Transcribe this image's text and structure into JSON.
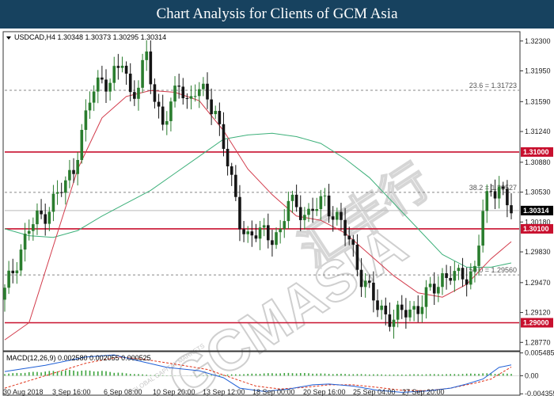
{
  "header": {
    "title": "Chart Analysis for Clients of GCM Asia"
  },
  "colors": {
    "bull": "#2a7d2e",
    "bear": "#151515",
    "ma_fast": "#d23a4a",
    "ma_slow": "#3db07a",
    "level_line": "#c8102e",
    "fib_line": "#888888",
    "macd_line": "#1f5fd6",
    "signal_line": "#e0341a",
    "hist": "#3ea43e"
  },
  "watermark": {
    "text": "GCMASIA",
    "sub": "GLOBAL CAPITAL MARKETS",
    "cn": "汇丰行"
  },
  "chart_data": [
    {
      "type": "candlestick",
      "title": "USDCAD,H4",
      "ohlc_label": "1.30348 1.30373 1.30295 1.30314",
      "ylim": [
        1.2868,
        1.324
      ],
      "y_ticks": [
        "1.32300",
        "1.31950",
        "1.31590",
        "1.31240",
        "1.30880",
        "1.30530",
        "1.30180",
        "1.29830",
        "1.29470",
        "1.29120",
        "1.28770"
      ],
      "x_labels": [
        "30 Aug 2018",
        "3 Sep 16:00",
        "6 Sep 08:00",
        "10 Sep 20:00",
        "13 Sep 12:00",
        "18 Sep 00:00",
        "20 Sep 16:00",
        "25 Sep 04:00",
        "27 Sep 20:00"
      ],
      "price_tags": [
        {
          "label": "1.31000",
          "value": 1.31,
          "style": "red"
        },
        {
          "label": "1.30314",
          "value": 1.30314,
          "style": "black"
        },
        {
          "label": "1.30100",
          "value": 1.301,
          "style": "red"
        },
        {
          "label": "1.29000",
          "value": 1.29,
          "style": "red"
        }
      ],
      "horizontal_levels": [
        1.31,
        1.301,
        1.29
      ],
      "current_price": 1.30314,
      "fib_levels": [
        {
          "label": "23.6 = 1.31723",
          "value": 1.31723
        },
        {
          "label": "38.2 = 1.30527",
          "value": 1.30527
        },
        {
          "label": "50.0 = 1.29560",
          "value": 1.2956
        }
      ],
      "close_path": [
        [
          0,
          1.2935
        ],
        [
          3,
          1.2975
        ],
        [
          6,
          1.301
        ],
        [
          10,
          1.303
        ],
        [
          13,
          1.305
        ],
        [
          15,
          1.306
        ],
        [
          17,
          1.3085
        ],
        [
          19,
          1.312
        ],
        [
          21,
          1.316
        ],
        [
          24,
          1.319
        ],
        [
          26,
          1.318
        ],
        [
          29,
          1.3205
        ],
        [
          31,
          1.317
        ],
        [
          33,
          1.318
        ],
        [
          35,
          1.321
        ],
        [
          37,
          1.316
        ],
        [
          39,
          1.314
        ],
        [
          41,
          1.315
        ],
        [
          43,
          1.318
        ],
        [
          45,
          1.316
        ],
        [
          47,
          1.3175
        ],
        [
          49,
          1.3165
        ],
        [
          52,
          1.315
        ],
        [
          54,
          1.311
        ],
        [
          56,
          1.306
        ],
        [
          58,
          1.302
        ],
        [
          60,
          1.3003
        ],
        [
          64,
          1.3003
        ],
        [
          68,
          1.3005
        ],
        [
          70,
          1.304
        ],
        [
          73,
          1.3035
        ],
        [
          75,
          1.3025
        ],
        [
          77,
          1.3035
        ],
        [
          79,
          1.3045
        ],
        [
          81,
          1.303
        ],
        [
          84,
          1.3005
        ],
        [
          86,
          1.2985
        ],
        [
          88,
          1.2955
        ],
        [
          90,
          1.2935
        ],
        [
          92,
          1.2918
        ],
        [
          94,
          1.2912
        ],
        [
          96,
          1.2905
        ],
        [
          98,
          1.291
        ],
        [
          100,
          1.2915
        ],
        [
          102,
          1.292
        ],
        [
          104,
          1.293
        ],
        [
          106,
          1.294
        ],
        [
          108,
          1.2955
        ],
        [
          110,
          1.2958
        ],
        [
          112,
          1.295
        ],
        [
          114,
          1.2955
        ],
        [
          116,
          1.2965
        ],
        [
          118,
          1.303
        ],
        [
          120,
          1.305
        ],
        [
          122,
          1.3065
        ],
        [
          124,
          1.304
        ],
        [
          125,
          1.30314
        ]
      ],
      "ma_fast_path": [
        [
          0,
          1.288
        ],
        [
          6,
          1.29
        ],
        [
          12,
          1.299
        ],
        [
          18,
          1.308
        ],
        [
          24,
          1.314
        ],
        [
          30,
          1.3165
        ],
        [
          36,
          1.3172
        ],
        [
          42,
          1.317
        ],
        [
          48,
          1.316
        ],
        [
          54,
          1.3125
        ],
        [
          60,
          1.308
        ],
        [
          66,
          1.305
        ],
        [
          72,
          1.3025
        ],
        [
          78,
          1.302
        ],
        [
          84,
          1.3005
        ],
        [
          90,
          1.298
        ],
        [
          96,
          1.2955
        ],
        [
          102,
          1.2935
        ],
        [
          108,
          1.293
        ],
        [
          114,
          1.2945
        ],
        [
          120,
          1.2975
        ],
        [
          125,
          1.2995
        ]
      ],
      "ma_slow_path": [
        [
          0,
          1.301
        ],
        [
          6,
          1.3002
        ],
        [
          12,
          1.3
        ],
        [
          18,
          1.3008
        ],
        [
          24,
          1.3025
        ],
        [
          30,
          1.304
        ],
        [
          36,
          1.3055
        ],
        [
          42,
          1.3075
        ],
        [
          48,
          1.3095
        ],
        [
          54,
          1.3115
        ],
        [
          60,
          1.312
        ],
        [
          66,
          1.3122
        ],
        [
          72,
          1.3118
        ],
        [
          78,
          1.311
        ],
        [
          84,
          1.3092
        ],
        [
          90,
          1.307
        ],
        [
          96,
          1.304
        ],
        [
          102,
          1.301
        ],
        [
          108,
          1.298
        ],
        [
          114,
          1.2965
        ],
        [
          120,
          1.2965
        ],
        [
          125,
          1.297
        ]
      ]
    },
    {
      "type": "macd",
      "title": "MACD(12,26,9) 0.002580 0.002055 0.000525",
      "ylim": [
        -0.0045,
        0.0056
      ],
      "y_ticks": [
        "0.005485",
        "0.00",
        "-0.004355"
      ],
      "macd_path": [
        [
          0,
          0.001
        ],
        [
          10,
          0.0025
        ],
        [
          20,
          0.0045
        ],
        [
          27,
          0.005
        ],
        [
          32,
          0.0038
        ],
        [
          40,
          0.002
        ],
        [
          48,
          0.0012
        ],
        [
          54,
          -0.0005
        ],
        [
          58,
          -0.003
        ],
        [
          64,
          -0.0038
        ],
        [
          70,
          -0.0032
        ],
        [
          76,
          -0.0022
        ],
        [
          80,
          -0.002
        ],
        [
          86,
          -0.0025
        ],
        [
          92,
          -0.0035
        ],
        [
          98,
          -0.004
        ],
        [
          104,
          -0.0037
        ],
        [
          110,
          -0.003
        ],
        [
          114,
          -0.002
        ],
        [
          118,
          -0.0008
        ],
        [
          122,
          0.002
        ],
        [
          125,
          0.0026
        ]
      ],
      "signal_path": [
        [
          0,
          -0.003
        ],
        [
          10,
          0.0
        ],
        [
          20,
          0.003
        ],
        [
          28,
          0.0045
        ],
        [
          34,
          0.004
        ],
        [
          42,
          0.0028
        ],
        [
          50,
          0.0015
        ],
        [
          56,
          -0.0005
        ],
        [
          62,
          -0.0025
        ],
        [
          68,
          -0.0032
        ],
        [
          74,
          -0.0028
        ],
        [
          80,
          -0.0022
        ],
        [
          86,
          -0.0022
        ],
        [
          92,
          -0.0028
        ],
        [
          98,
          -0.0035
        ],
        [
          104,
          -0.0036
        ],
        [
          110,
          -0.003
        ],
        [
          116,
          -0.0018
        ],
        [
          120,
          -0.0008
        ],
        [
          125,
          0.0021
        ]
      ],
      "histogram_path": [
        [
          0,
          0.0005
        ],
        [
          8,
          0.001
        ],
        [
          16,
          0.0014
        ],
        [
          24,
          0.0012
        ],
        [
          30,
          0.0006
        ],
        [
          36,
          0.0002
        ],
        [
          44,
          0.0
        ],
        [
          52,
          0.0002
        ],
        [
          58,
          0.0004
        ],
        [
          64,
          0.0006
        ],
        [
          72,
          0.0007
        ],
        [
          80,
          0.0005
        ],
        [
          88,
          0.0004
        ],
        [
          96,
          0.0003
        ],
        [
          104,
          0.0004
        ],
        [
          110,
          0.0004
        ],
        [
          118,
          0.0006
        ],
        [
          125,
          0.0005
        ]
      ]
    }
  ]
}
